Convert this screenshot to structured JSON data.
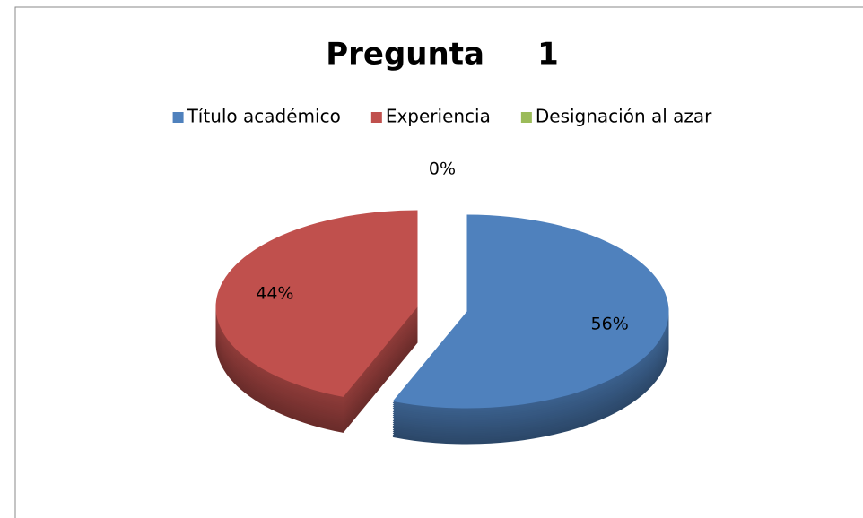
{
  "chart_data": {
    "type": "pie",
    "title": "Pregunta     1",
    "categories": [
      "Título académico",
      "Experiencia",
      "Designación al azar"
    ],
    "values": [
      56,
      44,
      0
    ],
    "value_labels": [
      "56%",
      "44%",
      "0%"
    ],
    "colors": [
      "#4f81bd",
      "#c0504d",
      "#9bbb59"
    ],
    "legend": "top"
  }
}
